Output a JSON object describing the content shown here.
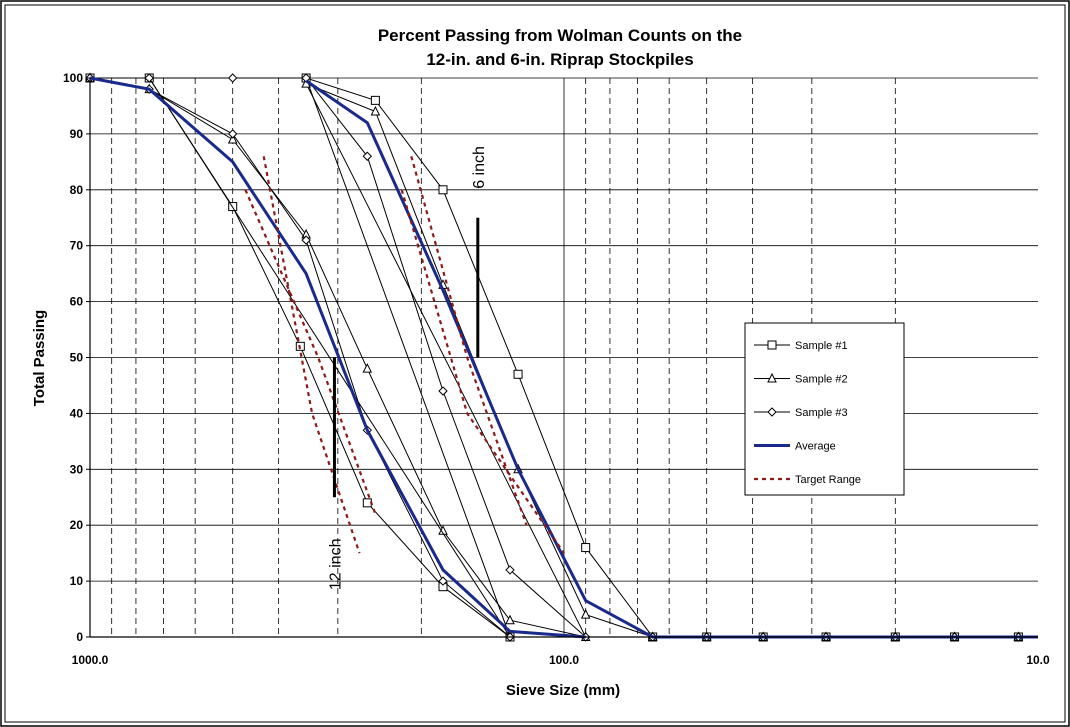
{
  "chart_data": {
    "type": "line",
    "title_lines": [
      "Percent Passing from Wolman Counts on the",
      "12-in. and 6-in. Riprap Stockpiles"
    ],
    "xlabel": "Sieve Size (mm)",
    "ylabel": "Total Passing",
    "x_scale": "log",
    "x_reversed": true,
    "xlim": [
      1000,
      10
    ],
    "ylim": [
      0,
      100
    ],
    "x_tick_labels": [
      {
        "value": 1000,
        "label": "1000.0"
      },
      {
        "value": 100,
        "label": "100.0"
      },
      {
        "value": 10,
        "label": "10.0"
      }
    ],
    "y_ticks": [
      0,
      10,
      20,
      30,
      40,
      50,
      60,
      70,
      80,
      90,
      100
    ],
    "grid": {
      "y_major": true,
      "x_decades": "solid",
      "x_minor": "dashed"
    },
    "legend_position": "right",
    "series": [
      {
        "name": "Sample #1",
        "marker": "square",
        "color": "#000000",
        "style": "thin",
        "points": [
          {
            "x": 1000,
            "y": 100
          },
          {
            "x": 750,
            "y": 100
          },
          {
            "x": 500,
            "y": 77
          },
          {
            "x": 360,
            "y": 52
          },
          {
            "x": 260,
            "y": 24
          },
          {
            "x": 180,
            "y": 9
          },
          {
            "x": 130,
            "y": 0
          },
          {
            "x": 350,
            "y": 100
          },
          {
            "x": 250,
            "y": 96
          },
          {
            "x": 180,
            "y": 80
          },
          {
            "x": 125,
            "y": 47
          },
          {
            "x": 90,
            "y": 16
          },
          {
            "x": 65,
            "y": 0
          },
          {
            "x": 50,
            "y": 0
          },
          {
            "x": 38,
            "y": 0
          },
          {
            "x": 28,
            "y": 0
          },
          {
            "x": 20,
            "y": 0
          },
          {
            "x": 15,
            "y": 0
          },
          {
            "x": 11,
            "y": 0
          }
        ]
      },
      {
        "name": "Sample #2",
        "marker": "triangle",
        "color": "#000000",
        "style": "thin",
        "points": [
          {
            "x": 1000,
            "y": 100
          },
          {
            "x": 750,
            "y": 98
          },
          {
            "x": 500,
            "y": 89
          },
          {
            "x": 350,
            "y": 72
          },
          {
            "x": 260,
            "y": 48
          },
          {
            "x": 180,
            "y": 19
          },
          {
            "x": 130,
            "y": 3
          },
          {
            "x": 90,
            "y": 0
          },
          {
            "x": 350,
            "y": 99
          },
          {
            "x": 250,
            "y": 94
          },
          {
            "x": 180,
            "y": 63
          },
          {
            "x": 125,
            "y": 30
          },
          {
            "x": 90,
            "y": 4
          },
          {
            "x": 65,
            "y": 0
          },
          {
            "x": 50,
            "y": 0
          },
          {
            "x": 38,
            "y": 0
          },
          {
            "x": 28,
            "y": 0
          },
          {
            "x": 20,
            "y": 0
          },
          {
            "x": 15,
            "y": 0
          },
          {
            "x": 11,
            "y": 0
          }
        ]
      },
      {
        "name": "Sample #3",
        "marker": "diamond",
        "color": "#000000",
        "style": "thin",
        "points": [
          {
            "x": 1000,
            "y": 100
          },
          {
            "x": 750,
            "y": 98
          },
          {
            "x": 500,
            "y": 90
          },
          {
            "x": 350,
            "y": 71
          },
          {
            "x": 260,
            "y": 37
          },
          {
            "x": 180,
            "y": 10
          },
          {
            "x": 130,
            "y": 0
          },
          {
            "x": 750,
            "y": 100
          },
          {
            "x": 500,
            "y": 100
          },
          {
            "x": 350,
            "y": 100
          },
          {
            "x": 260,
            "y": 86
          },
          {
            "x": 180,
            "y": 44
          },
          {
            "x": 130,
            "y": 12
          },
          {
            "x": 90,
            "y": 0
          },
          {
            "x": 65,
            "y": 0
          },
          {
            "x": 50,
            "y": 0
          },
          {
            "x": 38,
            "y": 0
          },
          {
            "x": 28,
            "y": 0
          },
          {
            "x": 20,
            "y": 0
          },
          {
            "x": 15,
            "y": 0
          },
          {
            "x": 11,
            "y": 0
          }
        ]
      },
      {
        "name": "Average",
        "marker": "none",
        "color": "#1a2a8c",
        "style": "thick",
        "segments": [
          [
            {
              "x": 1000,
              "y": 100
            },
            {
              "x": 750,
              "y": 98
            },
            {
              "x": 500,
              "y": 85
            },
            {
              "x": 350,
              "y": 65
            },
            {
              "x": 260,
              "y": 37
            },
            {
              "x": 180,
              "y": 12
            },
            {
              "x": 130,
              "y": 1
            },
            {
              "x": 90,
              "y": 0
            }
          ],
          [
            {
              "x": 350,
              "y": 99.5
            },
            {
              "x": 260,
              "y": 92
            },
            {
              "x": 180,
              "y": 62
            },
            {
              "x": 125,
              "y": 30
            },
            {
              "x": 90,
              "y": 6.5
            },
            {
              "x": 65,
              "y": 0
            },
            {
              "x": 50,
              "y": 0
            },
            {
              "x": 38,
              "y": 0
            },
            {
              "x": 28,
              "y": 0
            },
            {
              "x": 20,
              "y": 0
            },
            {
              "x": 15,
              "y": 0
            },
            {
              "x": 11,
              "y": 0
            },
            {
              "x": 10,
              "y": 0
            }
          ]
        ]
      },
      {
        "name": "Target Range",
        "marker": "none",
        "color": "#8b1a1a",
        "style": "dashed",
        "segments": [
          [
            {
              "x": 430,
              "y": 86
            },
            {
              "x": 340,
              "y": 40
            },
            {
              "x": 270,
              "y": 15
            }
          ],
          [
            {
              "x": 470,
              "y": 80
            },
            {
              "x": 330,
              "y": 50
            },
            {
              "x": 250,
              "y": 22
            }
          ],
          [
            {
              "x": 210,
              "y": 86
            },
            {
              "x": 160,
              "y": 50
            },
            {
              "x": 120,
              "y": 20
            }
          ],
          [
            {
              "x": 220,
              "y": 80
            },
            {
              "x": 160,
              "y": 40
            },
            {
              "x": 100,
              "y": 15
            }
          ]
        ]
      }
    ],
    "annotations": [
      {
        "label": "12 inch",
        "x": 305,
        "y_range": [
          25,
          50
        ],
        "label_y": 13
      },
      {
        "label": "6 inch",
        "x": 152,
        "y_range": [
          50,
          75
        ],
        "label_y": 84
      }
    ]
  }
}
